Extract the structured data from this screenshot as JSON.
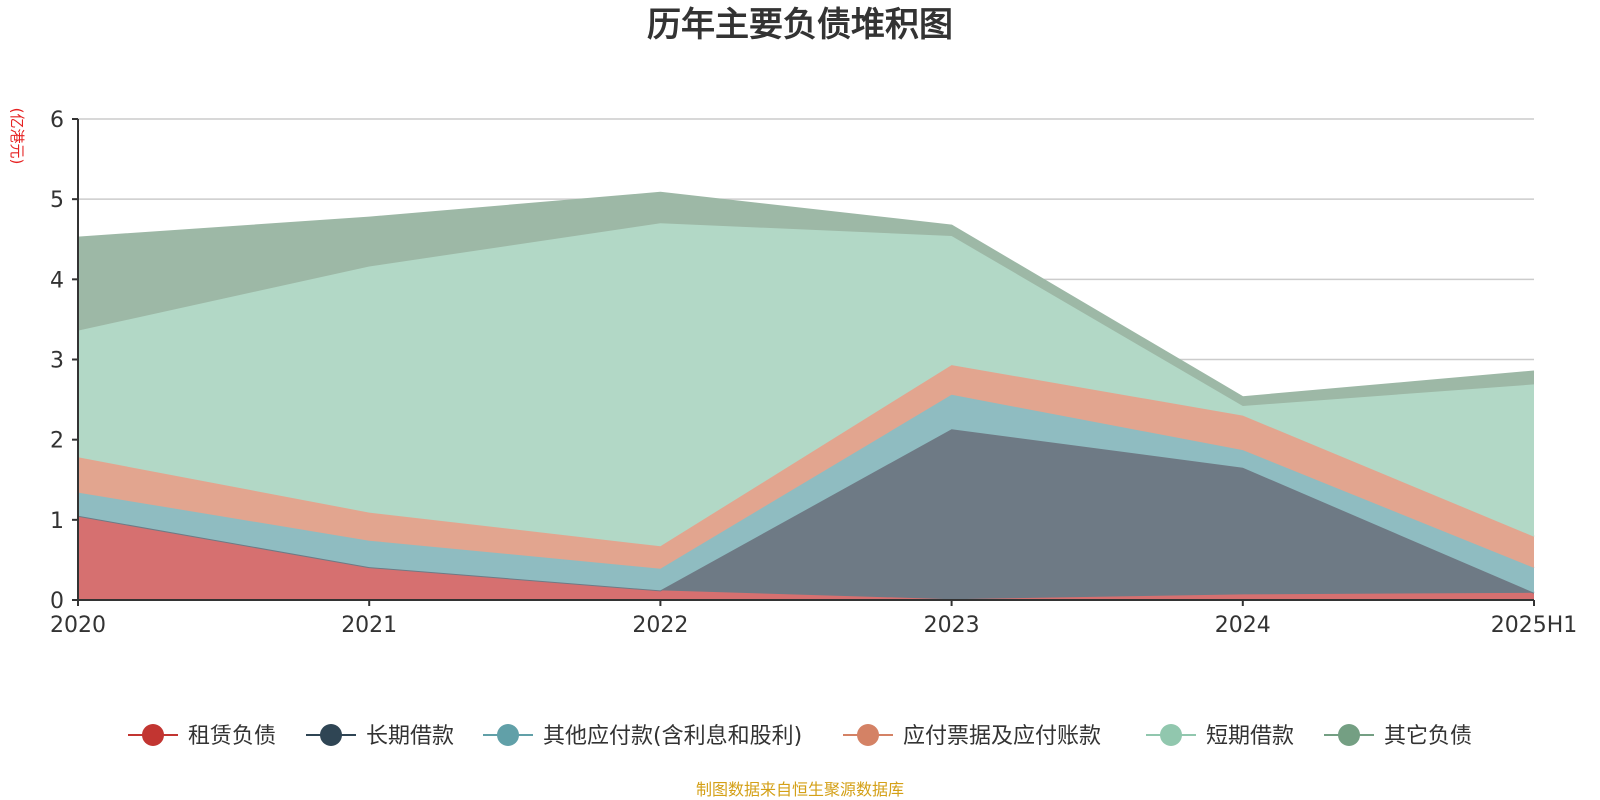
{
  "chart_data": {
    "type": "area",
    "stacked": true,
    "title": "历年主要负债堆积图",
    "unit_label": "(亿港元)",
    "source_note": "制图数据来自恒生聚源数据库",
    "categories": [
      "2020",
      "2021",
      "2022",
      "2023",
      "2024",
      "2025H1"
    ],
    "ylim": [
      0,
      6
    ],
    "yticks": [
      "0",
      "1",
      "2",
      "3",
      "4",
      "5",
      "6"
    ],
    "grid": true,
    "legend_position": "bottom",
    "series": [
      {
        "name": "租赁负债",
        "color": "#c23531",
        "fill": "#d67070",
        "values": [
          1.05,
          0.41,
          0.12,
          0.01,
          0.07,
          0.09
        ]
      },
      {
        "name": "长期借款",
        "color": "#2f4554",
        "fill": "#6e7a85",
        "values": [
          0.0,
          0.0,
          0.0,
          2.12,
          1.58,
          0.0
        ]
      },
      {
        "name": "其他应付款(含利息和股利)",
        "color": "#61a0a8",
        "fill": "#8fbcc1",
        "values": [
          0.29,
          0.33,
          0.27,
          0.43,
          0.22,
          0.31
        ]
      },
      {
        "name": "应付票据及应付账款",
        "color": "#d48265",
        "fill": "#e2a58f",
        "values": [
          0.44,
          0.35,
          0.28,
          0.37,
          0.43,
          0.39
        ]
      },
      {
        "name": "短期借款",
        "color": "#91c7ae",
        "fill": "#b2d8c6",
        "values": [
          1.58,
          3.07,
          4.03,
          1.61,
          0.12,
          1.9
        ]
      },
      {
        "name": "其它负债",
        "color": "#749f83",
        "fill": "#9db8a6",
        "values": [
          1.16,
          0.61,
          0.38,
          0.13,
          0.11,
          0.16
        ]
      }
    ]
  }
}
